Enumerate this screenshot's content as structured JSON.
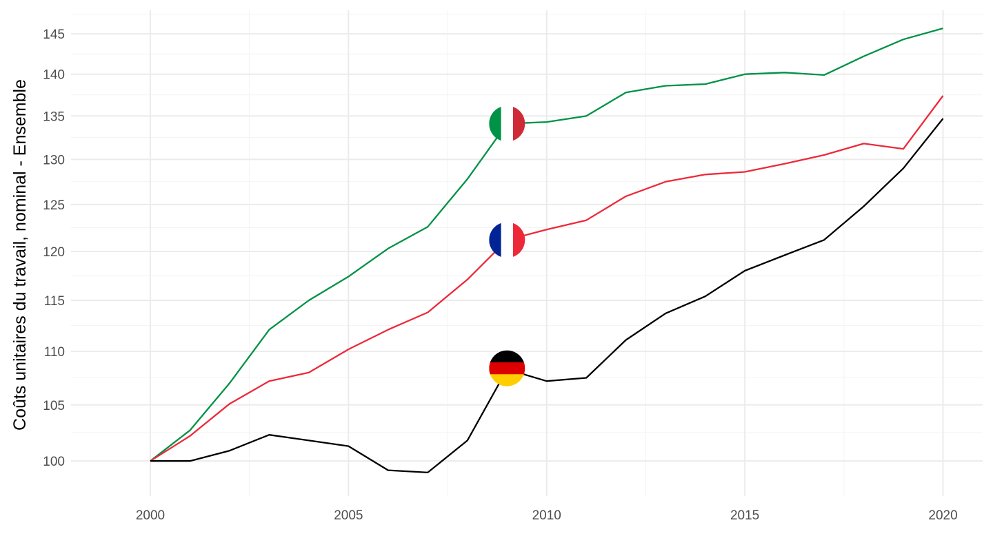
{
  "chart_data": {
    "type": "line",
    "title": "",
    "xlabel": "",
    "ylabel": "Coûts unitaires du travail, nominal - Ensemble",
    "y_scale": "log",
    "xlim": [
      1998,
      2021
    ],
    "ylim": [
      97,
      148
    ],
    "x_ticks": [
      2000,
      2005,
      2010,
      2015,
      2020
    ],
    "y_ticks": [
      100,
      105,
      110,
      115,
      120,
      125,
      130,
      135,
      140,
      145
    ],
    "grid": true,
    "legend": "none",
    "x": [
      2000,
      2001,
      2002,
      2003,
      2004,
      2005,
      2006,
      2007,
      2008,
      2009,
      2010,
      2011,
      2012,
      2013,
      2014,
      2015,
      2016,
      2017,
      2018,
      2019,
      2020
    ],
    "series": [
      {
        "flag": "italy",
        "color": "#009246",
        "values": [
          100,
          102.7,
          107,
          112.1,
          115,
          117.4,
          120.3,
          122.6,
          127.8,
          134.1,
          134.3,
          135,
          137.8,
          138.6,
          138.8,
          140,
          140.2,
          139.9,
          142.2,
          144.3,
          145.7
        ]
      },
      {
        "flag": "france",
        "color": "#ED2939",
        "values": [
          100,
          102.2,
          105.1,
          107.2,
          108,
          110.2,
          112.1,
          113.8,
          117.1,
          121.2,
          122.3,
          123.3,
          125.9,
          127.5,
          128.3,
          128.6,
          129.5,
          130.5,
          131.8,
          131.2,
          137.4
        ]
      },
      {
        "flag": "germany",
        "color": "#000000",
        "values": [
          100,
          100,
          100.9,
          102.3,
          101.8,
          101.3,
          99.2,
          99,
          101.8,
          108.3,
          107.2,
          107.5,
          111.1,
          113.7,
          115.4,
          118,
          119.6,
          121.2,
          124.8,
          129,
          134.7
        ]
      }
    ],
    "flag_markers": [
      {
        "flag": "italy",
        "x": 2009,
        "y": 134.1,
        "colors": [
          "#009246",
          "#FFFFFF",
          "#CE2B37"
        ],
        "stripes": "vertical"
      },
      {
        "flag": "france",
        "x": 2009,
        "y": 121.2,
        "colors": [
          "#002395",
          "#FFFFFF",
          "#ED2939"
        ],
        "stripes": "vertical"
      },
      {
        "flag": "germany",
        "x": 2009,
        "y": 108.4,
        "colors": [
          "#000000",
          "#DD0000",
          "#FFCE00"
        ],
        "stripes": "horizontal"
      }
    ]
  }
}
